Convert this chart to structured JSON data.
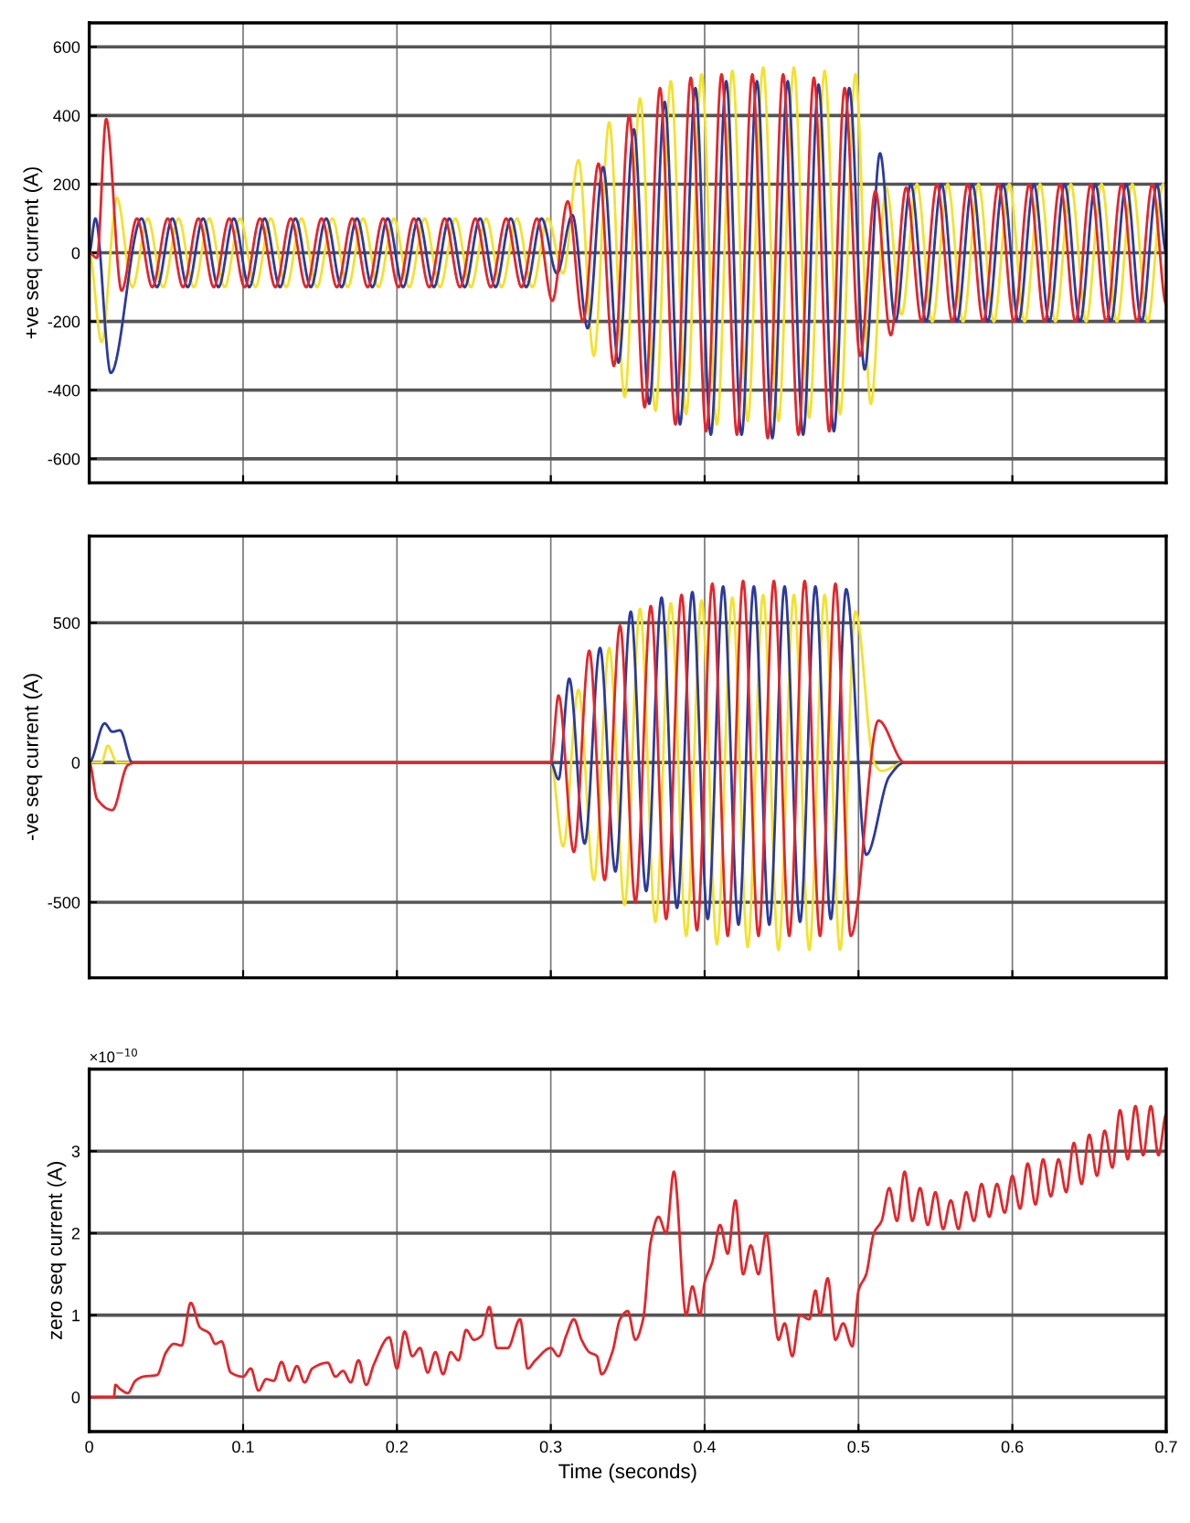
{
  "chart_data": [
    {
      "type": "line",
      "ylabel": "+ve seq current (A)",
      "xlim": [
        0,
        0.7
      ],
      "xticks": [
        0,
        0.1,
        0.2,
        0.3,
        0.4,
        0.5,
        0.6,
        0.7
      ],
      "ylim": [
        -670,
        670
      ],
      "yticks": [
        -600,
        -400,
        -200,
        0,
        200,
        400,
        600
      ],
      "grid": true,
      "legend": false,
      "tick_labels": "y",
      "series": [
        {
          "color": "#f2e22e",
          "x": [
            0,
            0.008,
            0.018,
            0.028,
            0.038,
            0.048,
            0.058,
            0.068,
            0.078,
            0.088,
            0.098,
            0.108,
            0.118,
            0.128,
            0.138,
            0.148,
            0.158,
            0.168,
            0.178,
            0.188,
            0.198,
            0.208,
            0.218,
            0.228,
            0.238,
            0.248,
            0.258,
            0.268,
            0.278,
            0.288,
            0.298,
            0.308,
            0.318,
            0.328,
            0.338,
            0.348,
            0.358,
            0.368,
            0.378,
            0.388,
            0.398,
            0.408,
            0.418,
            0.428,
            0.438,
            0.448,
            0.458,
            0.468,
            0.478,
            0.488,
            0.498,
            0.508,
            0.518,
            0.528,
            0.538,
            0.548,
            0.558,
            0.568,
            0.578,
            0.588,
            0.598,
            0.608,
            0.618,
            0.628,
            0.638,
            0.648,
            0.658,
            0.668,
            0.678,
            0.688,
            0.698,
            0.7
          ],
          "values": [
            0,
            -260,
            160,
            -100,
            100,
            -100,
            100,
            -100,
            100,
            -100,
            100,
            -100,
            100,
            -100,
            100,
            -100,
            100,
            -100,
            100,
            -100,
            100,
            -100,
            100,
            -100,
            100,
            -100,
            100,
            -100,
            100,
            -100,
            100,
            -60,
            270,
            -300,
            380,
            -420,
            450,
            -460,
            500,
            -470,
            520,
            -500,
            530,
            -490,
            540,
            -490,
            540,
            -480,
            530,
            -470,
            520,
            -440,
            190,
            -180,
            200,
            -200,
            200,
            -200,
            200,
            -200,
            200,
            -200,
            200,
            -200,
            200,
            -200,
            200,
            -200,
            200,
            -200,
            200,
            190
          ]
        },
        {
          "color": "#2b3a9c",
          "x": [
            0,
            0.004,
            0.014,
            0.034,
            0.044,
            0.054,
            0.064,
            0.074,
            0.084,
            0.094,
            0.104,
            0.114,
            0.124,
            0.134,
            0.144,
            0.154,
            0.164,
            0.174,
            0.184,
            0.194,
            0.204,
            0.214,
            0.224,
            0.234,
            0.244,
            0.254,
            0.264,
            0.274,
            0.284,
            0.294,
            0.304,
            0.314,
            0.324,
            0.334,
            0.344,
            0.354,
            0.364,
            0.374,
            0.384,
            0.394,
            0.404,
            0.414,
            0.424,
            0.434,
            0.444,
            0.454,
            0.464,
            0.474,
            0.484,
            0.494,
            0.504,
            0.514,
            0.524,
            0.534,
            0.544,
            0.554,
            0.564,
            0.574,
            0.584,
            0.594,
            0.604,
            0.614,
            0.624,
            0.634,
            0.644,
            0.654,
            0.664,
            0.674,
            0.684,
            0.694,
            0.7
          ],
          "values": [
            0,
            100,
            -350,
            100,
            -100,
            100,
            -100,
            100,
            -100,
            100,
            -100,
            100,
            -100,
            100,
            -100,
            100,
            -100,
            100,
            -100,
            100,
            -100,
            100,
            -100,
            100,
            -100,
            100,
            -100,
            100,
            -100,
            100,
            -60,
            110,
            -220,
            250,
            -320,
            360,
            -440,
            440,
            -500,
            480,
            -530,
            500,
            -530,
            500,
            -540,
            500,
            -530,
            490,
            -520,
            480,
            -340,
            290,
            -200,
            200,
            -200,
            200,
            -200,
            200,
            -200,
            200,
            -200,
            200,
            -200,
            200,
            -200,
            200,
            -200,
            200,
            -200,
            200,
            0
          ]
        },
        {
          "color": "#e3262b",
          "x": [
            0,
            0.005,
            0.011,
            0.021,
            0.031,
            0.041,
            0.051,
            0.061,
            0.071,
            0.081,
            0.091,
            0.101,
            0.111,
            0.121,
            0.131,
            0.141,
            0.151,
            0.161,
            0.171,
            0.181,
            0.191,
            0.201,
            0.211,
            0.221,
            0.231,
            0.241,
            0.251,
            0.261,
            0.271,
            0.281,
            0.291,
            0.301,
            0.311,
            0.321,
            0.331,
            0.341,
            0.351,
            0.361,
            0.371,
            0.381,
            0.391,
            0.401,
            0.411,
            0.421,
            0.431,
            0.441,
            0.451,
            0.461,
            0.471,
            0.481,
            0.491,
            0.501,
            0.511,
            0.521,
            0.531,
            0.541,
            0.551,
            0.561,
            0.571,
            0.581,
            0.591,
            0.601,
            0.611,
            0.621,
            0.631,
            0.641,
            0.651,
            0.661,
            0.671,
            0.681,
            0.691,
            0.7
          ],
          "values": [
            0,
            -15,
            390,
            -110,
            100,
            -100,
            100,
            -100,
            100,
            -100,
            100,
            -100,
            100,
            -100,
            100,
            -100,
            100,
            -100,
            100,
            -100,
            100,
            -100,
            100,
            -100,
            100,
            -100,
            100,
            -100,
            100,
            -100,
            100,
            -140,
            150,
            -200,
            260,
            -330,
            400,
            -450,
            480,
            -500,
            510,
            -520,
            520,
            -530,
            520,
            -540,
            520,
            -530,
            510,
            -520,
            480,
            -300,
            180,
            -240,
            190,
            -200,
            200,
            -200,
            200,
            -200,
            200,
            -200,
            200,
            -200,
            200,
            -200,
            200,
            -200,
            200,
            -200,
            200,
            -150
          ]
        }
      ]
    },
    {
      "type": "line",
      "ylabel": "-ve seq current (A)",
      "xlim": [
        0,
        0.7
      ],
      "xticks": [
        0,
        0.1,
        0.2,
        0.3,
        0.4,
        0.5,
        0.6,
        0.7
      ],
      "ylim": [
        -770,
        810
      ],
      "yticks": [
        -500,
        0,
        500
      ],
      "grid": true,
      "legend": false,
      "tick_labels": "y",
      "series": [
        {
          "color": "#f2e22e",
          "x": [
            0,
            0.008,
            0.012,
            0.018,
            0.3,
            0.308,
            0.318,
            0.328,
            0.338,
            0.348,
            0.358,
            0.368,
            0.378,
            0.388,
            0.398,
            0.408,
            0.418,
            0.428,
            0.438,
            0.448,
            0.458,
            0.468,
            0.478,
            0.488,
            0.498,
            0.51,
            0.515,
            0.53,
            0.7
          ],
          "values": [
            0,
            0,
            60,
            0,
            0,
            -300,
            260,
            -420,
            410,
            -510,
            550,
            -570,
            570,
            -620,
            580,
            -650,
            590,
            -660,
            600,
            -670,
            600,
            -670,
            600,
            -670,
            540,
            0,
            -30,
            0,
            0
          ]
        },
        {
          "color": "#2b3a9c",
          "x": [
            0,
            0.01,
            0.015,
            0.02,
            0.028,
            0.3,
            0.305,
            0.312,
            0.322,
            0.332,
            0.342,
            0.352,
            0.362,
            0.372,
            0.382,
            0.392,
            0.402,
            0.412,
            0.422,
            0.432,
            0.442,
            0.452,
            0.462,
            0.472,
            0.482,
            0.492,
            0.505,
            0.52,
            0.53,
            0.7
          ],
          "values": [
            0,
            140,
            110,
            115,
            0,
            0,
            -60,
            300,
            -290,
            410,
            -390,
            540,
            -460,
            590,
            -520,
            610,
            -560,
            630,
            -580,
            630,
            -580,
            630,
            -570,
            630,
            -560,
            620,
            -330,
            -50,
            0,
            0
          ]
        },
        {
          "color": "#e3262b",
          "x": [
            0,
            0.005,
            0.015,
            0.025,
            0.03,
            0.3,
            0.305,
            0.315,
            0.325,
            0.335,
            0.345,
            0.355,
            0.365,
            0.375,
            0.385,
            0.395,
            0.405,
            0.415,
            0.425,
            0.435,
            0.445,
            0.455,
            0.465,
            0.475,
            0.485,
            0.495,
            0.513,
            0.53,
            0.7
          ],
          "values": [
            0,
            -130,
            -170,
            -10,
            0,
            0,
            240,
            -320,
            400,
            -420,
            490,
            -500,
            560,
            -560,
            600,
            -600,
            640,
            -620,
            650,
            -620,
            650,
            -620,
            650,
            -620,
            640,
            -620,
            150,
            0,
            0
          ]
        }
      ]
    },
    {
      "type": "line",
      "ylabel": "zero seq current (A)",
      "xlabel": "Time (seconds)",
      "annotations": [
        "×10$^{−10}$"
      ],
      "xlim": [
        0,
        0.7
      ],
      "xticks": [
        0,
        0.1,
        0.2,
        0.3,
        0.4,
        0.5,
        0.6,
        0.7
      ],
      "ylim": [
        -0.42,
        4.0
      ],
      "yticks": [
        0,
        1,
        2,
        3
      ],
      "grid": true,
      "legend": false,
      "series": [
        {
          "color": "#e3262b",
          "x": [
            0,
            0.016,
            0.017,
            0.02,
            0.025,
            0.03,
            0.035,
            0.044,
            0.05,
            0.055,
            0.06,
            0.066,
            0.072,
            0.078,
            0.082,
            0.086,
            0.092,
            0.1,
            0.105,
            0.11,
            0.115,
            0.12,
            0.125,
            0.13,
            0.135,
            0.14,
            0.145,
            0.155,
            0.16,
            0.165,
            0.17,
            0.175,
            0.18,
            0.185,
            0.195,
            0.2,
            0.205,
            0.21,
            0.215,
            0.22,
            0.225,
            0.23,
            0.235,
            0.24,
            0.245,
            0.25,
            0.255,
            0.26,
            0.265,
            0.272,
            0.28,
            0.285,
            0.29,
            0.3,
            0.305,
            0.31,
            0.315,
            0.32,
            0.325,
            0.33,
            0.333,
            0.34,
            0.345,
            0.35,
            0.355,
            0.36,
            0.365,
            0.37,
            0.375,
            0.38,
            0.388,
            0.392,
            0.397,
            0.4,
            0.405,
            0.41,
            0.415,
            0.42,
            0.425,
            0.43,
            0.435,
            0.44,
            0.448,
            0.452,
            0.457,
            0.462,
            0.468,
            0.472,
            0.475,
            0.48,
            0.485,
            0.49,
            0.496,
            0.5,
            0.505,
            0.51,
            0.515,
            0.52,
            0.525,
            0.53,
            0.535,
            0.54,
            0.545,
            0.55,
            0.555,
            0.56,
            0.565,
            0.57,
            0.575,
            0.58,
            0.585,
            0.59,
            0.595,
            0.6,
            0.605,
            0.61,
            0.615,
            0.62,
            0.625,
            0.63,
            0.635,
            0.64,
            0.645,
            0.65,
            0.655,
            0.66,
            0.665,
            0.67,
            0.675,
            0.68,
            0.685,
            0.69,
            0.695,
            0.7
          ],
          "values": [
            0,
            0,
            0.15,
            0.1,
            0.05,
            0.2,
            0.25,
            0.27,
            0.55,
            0.65,
            0.63,
            1.15,
            0.85,
            0.78,
            0.65,
            0.68,
            0.3,
            0.25,
            0.35,
            0.08,
            0.22,
            0.2,
            0.43,
            0.2,
            0.38,
            0.18,
            0.35,
            0.42,
            0.25,
            0.32,
            0.18,
            0.45,
            0.15,
            0.4,
            0.73,
            0.35,
            0.8,
            0.5,
            0.6,
            0.3,
            0.55,
            0.28,
            0.55,
            0.45,
            0.82,
            0.7,
            0.75,
            1.1,
            0.6,
            0.6,
            0.95,
            0.35,
            0.45,
            0.6,
            0.5,
            0.75,
            0.95,
            0.7,
            0.55,
            0.5,
            0.28,
            0.55,
            0.95,
            1.05,
            0.7,
            0.95,
            1.9,
            2.2,
            2.0,
            2.75,
            1.0,
            1.35,
            1.0,
            1.4,
            1.65,
            2.1,
            1.75,
            2.4,
            1.5,
            1.85,
            1.5,
            2.0,
            0.7,
            0.9,
            0.5,
            1.0,
            0.95,
            1.3,
            1.0,
            1.45,
            0.7,
            0.9,
            0.62,
            1.3,
            1.5,
            2.0,
            2.15,
            2.55,
            2.15,
            2.75,
            2.15,
            2.55,
            2.1,
            2.5,
            2.05,
            2.4,
            2.05,
            2.5,
            2.15,
            2.6,
            2.2,
            2.6,
            2.25,
            2.7,
            2.3,
            2.85,
            2.35,
            2.9,
            2.45,
            2.9,
            2.5,
            3.1,
            2.6,
            3.2,
            2.7,
            3.25,
            2.8,
            3.5,
            2.9,
            3.55,
            2.95,
            3.55,
            2.95,
            3.45
          ]
        }
      ]
    }
  ]
}
